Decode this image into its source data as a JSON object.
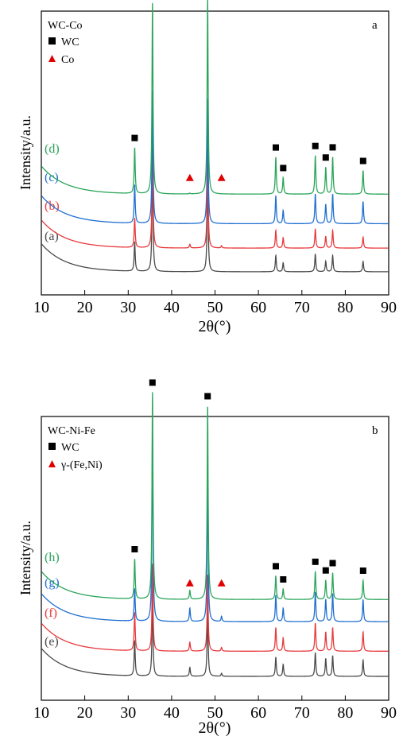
{
  "chart_data": [
    {
      "type": "line",
      "panel_label": "a",
      "title": "WC-Co",
      "xlabel": "2θ(°)",
      "ylabel": "Intensity/a.u.",
      "xlim": [
        10,
        90
      ],
      "xticks": [
        10,
        20,
        30,
        40,
        50,
        60,
        70,
        80,
        90
      ],
      "grid": false,
      "legend": {
        "placement": "top-left",
        "entries": [
          {
            "marker": "square",
            "label": "WC",
            "color": "#000000"
          },
          {
            "marker": "triangle",
            "label": "Co",
            "color": "#e00000"
          }
        ]
      },
      "phase_peaks": {
        "WC": [
          31.5,
          35.6,
          48.3,
          64.0,
          65.7,
          73.1,
          75.5,
          77.1,
          84.1
        ],
        "Co": [
          44.2,
          51.5
        ]
      },
      "series": [
        {
          "name": "(a)",
          "color": "#4a4a4a",
          "baseline": 13,
          "background": 38,
          "peaks": [
            [
              31.5,
              40
            ],
            [
              35.6,
              152
            ],
            [
              48.3,
              142
            ],
            [
              64.0,
              22
            ],
            [
              65.7,
              12
            ],
            [
              73.1,
              24
            ],
            [
              75.5,
              14
            ],
            [
              77.1,
              22
            ],
            [
              84.1,
              14
            ]
          ]
        },
        {
          "name": "(b)",
          "color": "#e8393c",
          "baseline": 45,
          "background": 38,
          "peaks": [
            [
              31.5,
              40
            ],
            [
              35.6,
              145
            ],
            [
              44.2,
              5
            ],
            [
              48.3,
              135
            ],
            [
              51.5,
              3
            ],
            [
              64.0,
              24
            ],
            [
              65.7,
              14
            ],
            [
              73.1,
              26
            ],
            [
              75.5,
              16
            ],
            [
              77.1,
              24
            ],
            [
              84.1,
              15
            ]
          ]
        },
        {
          "name": "(c)",
          "color": "#1f6fd1",
          "baseline": 78,
          "background": 38,
          "peaks": [
            [
              31.5,
              52
            ],
            [
              35.6,
              180
            ],
            [
              48.3,
              170
            ],
            [
              64.0,
              38
            ],
            [
              65.7,
              18
            ],
            [
              73.1,
              40
            ],
            [
              75.5,
              26
            ],
            [
              77.1,
              40
            ],
            [
              84.1,
              30
            ]
          ]
        },
        {
          "name": "(d)",
          "color": "#2aa55a",
          "baseline": 118,
          "background": 38,
          "peaks": [
            [
              31.5,
              62
            ],
            [
              35.6,
              258
            ],
            [
              44.2,
              1
            ],
            [
              48.3,
              265
            ],
            [
              64.0,
              50
            ],
            [
              65.7,
              22
            ],
            [
              73.1,
              52
            ],
            [
              75.5,
              36
            ],
            [
              77.1,
              50
            ],
            [
              84.1,
              32
            ]
          ]
        }
      ]
    },
    {
      "type": "line",
      "panel_label": "b",
      "title": "WC-Ni-Fe",
      "xlabel": "2θ(°)",
      "ylabel": "Intensity/a.u.",
      "xlim": [
        10,
        90
      ],
      "xticks": [
        10,
        20,
        30,
        40,
        50,
        60,
        70,
        80,
        90
      ],
      "grid": false,
      "legend": {
        "placement": "top-left",
        "entries": [
          {
            "marker": "square",
            "label": "WC",
            "color": "#000000"
          },
          {
            "marker": "triangle",
            "label": "γ-(Fe,Ni)",
            "color": "#e00000"
          }
        ]
      },
      "phase_peaks": {
        "WC": [
          31.5,
          35.6,
          48.3,
          64.0,
          65.7,
          73.1,
          75.5,
          77.1,
          84.1
        ],
        "γ-(Fe,Ni)": [
          44.2,
          51.5
        ]
      },
      "series": [
        {
          "name": "(e)",
          "color": "#4a4a4a",
          "baseline": 14,
          "background": 38,
          "peaks": [
            [
              31.5,
              48
            ],
            [
              35.6,
              108
            ],
            [
              44.2,
              12
            ],
            [
              48.3,
              94
            ],
            [
              51.5,
              4
            ],
            [
              64.0,
              26
            ],
            [
              65.7,
              16
            ],
            [
              73.1,
              32
            ],
            [
              75.5,
              24
            ],
            [
              77.1,
              28
            ],
            [
              84.1,
              22
            ]
          ]
        },
        {
          "name": "(f)",
          "color": "#e8393c",
          "baseline": 48,
          "background": 38,
          "peaks": [
            [
              31.5,
              52
            ],
            [
              35.6,
              118
            ],
            [
              44.2,
              12
            ],
            [
              48.3,
              104
            ],
            [
              51.5,
              5
            ],
            [
              64.0,
              32
            ],
            [
              65.7,
              18
            ],
            [
              73.1,
              38
            ],
            [
              75.5,
              26
            ],
            [
              77.1,
              32
            ],
            [
              84.1,
              26
            ]
          ]
        },
        {
          "name": "(g)",
          "color": "#1f6fd1",
          "baseline": 88,
          "background": 38,
          "peaks": [
            [
              31.5,
              44
            ],
            [
              35.6,
              258
            ],
            [
              44.2,
              18
            ],
            [
              48.3,
              200
            ],
            [
              51.5,
              7
            ],
            [
              64.0,
              36
            ],
            [
              65.7,
              18
            ],
            [
              73.1,
              40
            ],
            [
              75.5,
              30
            ],
            [
              77.1,
              38
            ],
            [
              84.1,
              30
            ]
          ]
        },
        {
          "name": "(h)",
          "color": "#2aa55a",
          "baseline": 118,
          "background": 38,
          "peaks": [
            [
              31.5,
              54
            ],
            [
              35.6,
              280
            ],
            [
              44.2,
              12
            ],
            [
              48.3,
              262
            ],
            [
              64.0,
              32
            ],
            [
              65.7,
              14
            ],
            [
              73.1,
              38
            ],
            [
              75.5,
              26
            ],
            [
              77.1,
              36
            ],
            [
              84.1,
              26
            ]
          ]
        }
      ]
    }
  ]
}
